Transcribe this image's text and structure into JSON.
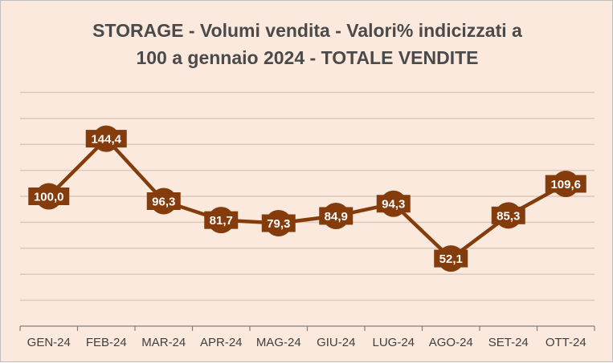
{
  "chart_data": {
    "type": "line",
    "title_lines": [
      "STORAGE - Volumi vendita - Valori% indicizzati a",
      "100 a gennaio 2024 - TOTALE VENDITE"
    ],
    "xlabel": "",
    "ylabel": "",
    "categories": [
      "GEN-24",
      "FEB-24",
      "MAR-24",
      "APR-24",
      "MAG-24",
      "GIU-24",
      "LUG-24",
      "AGO-24",
      "SET-24",
      "OTT-24"
    ],
    "series": [
      {
        "values": [
          100.0,
          144.4,
          96.3,
          81.7,
          79.3,
          84.9,
          94.3,
          52.1,
          85.3,
          109.6
        ],
        "labels": [
          "100,0",
          "144,4",
          "96,3",
          "81,7",
          "79,3",
          "84,9",
          "94,3",
          "52,1",
          "85,3",
          "109,6"
        ]
      }
    ],
    "ylim": [
      0,
      180
    ],
    "ytick_step": 20,
    "y_axis_labels_visible": false,
    "grid": true,
    "colors": {
      "background": "#fae9dc",
      "line": "#843c0c",
      "gridline": "#d9c8bb",
      "axis": "#7f7f7f"
    }
  }
}
